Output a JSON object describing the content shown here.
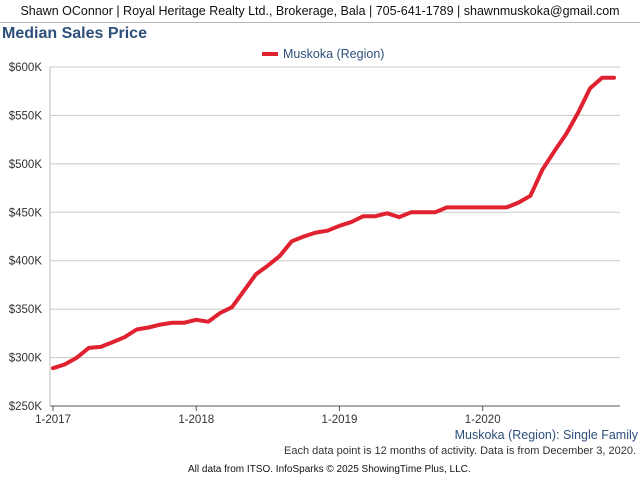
{
  "header": {
    "text": "Shawn OConnor | Royal Heritage Realty Ltd., Brokerage, Bala | 705-641-1789 | shawnmuskoka@gmail.com"
  },
  "chart_data": {
    "type": "line",
    "title": "Median Sales Price",
    "xlabel": "",
    "ylabel": "",
    "ylim": [
      250000,
      600000
    ],
    "y_ticks": [
      250000,
      300000,
      350000,
      400000,
      450000,
      500000,
      550000,
      600000
    ],
    "y_tick_labels": [
      "$250K",
      "$300K",
      "$350K",
      "$400K",
      "$450K",
      "$500K",
      "$550K",
      "$600K"
    ],
    "x_tick_labels": [
      "1-2017",
      "1-2018",
      "1-2019",
      "1-2020"
    ],
    "x_tick_positions": [
      0,
      12,
      24,
      36
    ],
    "grid": true,
    "legend_position": "top-center",
    "series": [
      {
        "name": "Muskoka (Region)",
        "color": "#e02130",
        "x_months": [
          0,
          1,
          2,
          3,
          4,
          5,
          6,
          7,
          8,
          9,
          10,
          11,
          12,
          13,
          14,
          15,
          16,
          17,
          18,
          19,
          20,
          21,
          22,
          23,
          24,
          25,
          26,
          27,
          28,
          29,
          30,
          31,
          32,
          33,
          34,
          35,
          36,
          37,
          38,
          39,
          40,
          41,
          42,
          43,
          44,
          45,
          46,
          47
        ],
        "values": [
          289000,
          293000,
          300000,
          310000,
          311000,
          316000,
          321000,
          329000,
          331000,
          334000,
          336000,
          336000,
          339000,
          337000,
          346000,
          352000,
          369000,
          386000,
          395000,
          405000,
          420000,
          425000,
          429000,
          431000,
          436000,
          440000,
          446000,
          446000,
          449000,
          445000,
          450000,
          450000,
          450000,
          455000,
          455000,
          455000,
          455000,
          455000,
          455000,
          460000,
          467000,
          494000,
          513000,
          531000,
          553000,
          578000,
          589000,
          589000
        ]
      }
    ]
  },
  "series_caption": "Muskoka (Region): Single Family",
  "footnote": "Each data point is 12 months of activity. Data is from December 3, 2020.",
  "footer_credit": "All data from ITSO. InfoSparks © 2025 ShowingTime Plus, LLC."
}
